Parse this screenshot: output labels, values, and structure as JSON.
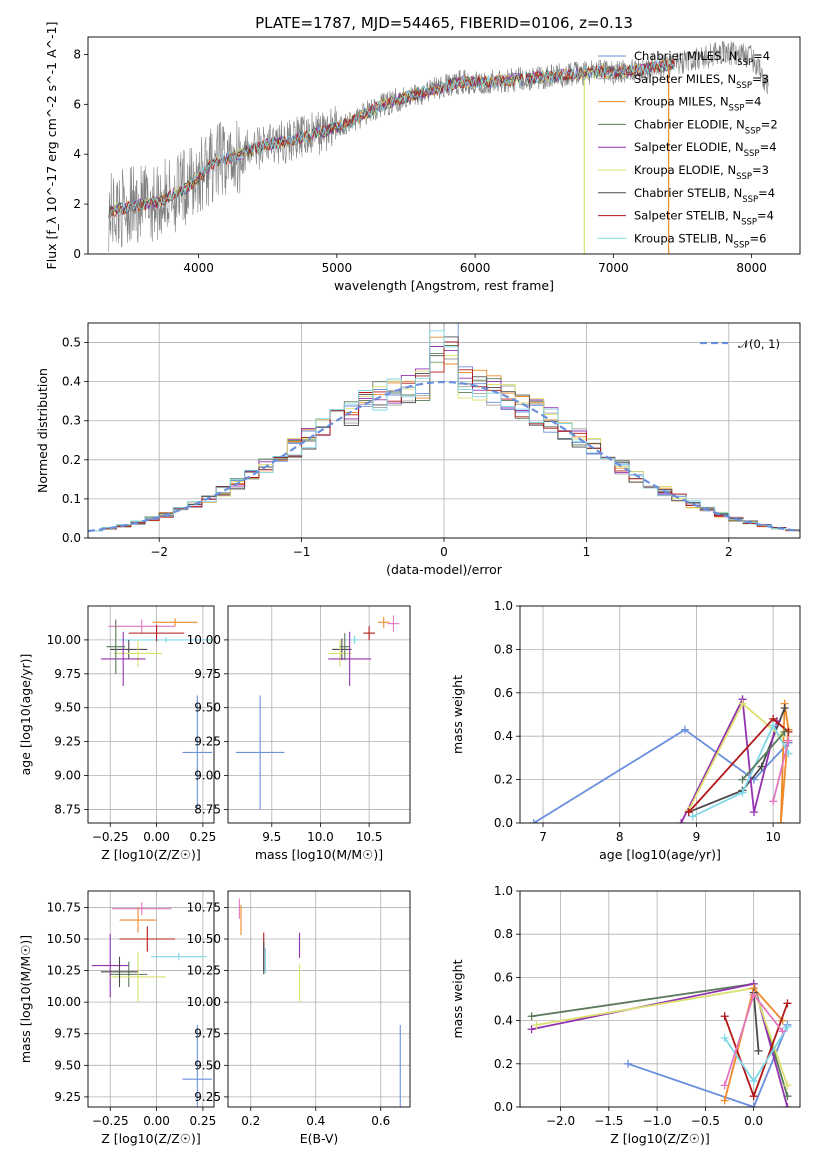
{
  "figure_title": "PLATE=1787, MJD=54465, FIBERID=0106, z=0.13",
  "colors": [
    "#6a8fdc",
    "#a0a0a0",
    "#ee8a2a",
    "#5a7a5a",
    "#9333b0",
    "#dce070",
    "#4a4a4a",
    "#b31818",
    "#7fd8e8"
  ],
  "chart_data": [
    {
      "type": "line",
      "title": "PLATE=1787, MJD=54465, FIBERID=0106, z=0.13",
      "xlabel": "wavelength [Angstrom, rest frame]",
      "ylabel": "Flux [f_λ 10^-17 erg cm^-2 s^-1 A^-1]",
      "xlim": [
        3200,
        8350
      ],
      "ylim": [
        0,
        8.7
      ],
      "xticks": [
        4000,
        5000,
        6000,
        7000,
        8000
      ],
      "yticks": [
        0,
        2,
        4,
        6,
        8
      ],
      "legend_position": "upper-right",
      "series": [
        {
          "name": "Chabrier MILES, N_SSP=4",
          "color": "#6a8fdc"
        },
        {
          "name": "Salpeter MILES, N_SSP=3",
          "color": "#a0a0a0"
        },
        {
          "name": "Kroupa MILES, N_SSP=4",
          "color": "#ee8a2a"
        },
        {
          "name": "Chabrier ELODIE, N_SSP=2",
          "color": "#5a7a5a"
        },
        {
          "name": "Salpeter ELODIE, N_SSP=4",
          "color": "#9333b0"
        },
        {
          "name": "Kroupa ELODIE, N_SSP=3",
          "color": "#dce070"
        },
        {
          "name": "Chabrier STELIB, N_SSP=4",
          "color": "#4a4a4a"
        },
        {
          "name": "Salpeter STELIB, N_SSP=4",
          "color": "#b31818"
        },
        {
          "name": "Kroupa STELIB, N_SSP=6",
          "color": "#7fd8e8"
        }
      ],
      "data_series": {
        "name": "data",
        "color": "#808080",
        "x": [
          3350,
          3500,
          3700,
          3900,
          4100,
          4300,
          4500,
          4700,
          4900,
          5100,
          5300,
          5500,
          5700,
          5900,
          6100,
          6300,
          6500,
          6700,
          6900,
          7100,
          7300,
          7450,
          7600,
          7800,
          8000,
          8100
        ],
        "y": [
          1.7,
          1.9,
          2.1,
          2.6,
          3.6,
          4.0,
          4.4,
          4.6,
          4.9,
          5.3,
          5.9,
          6.3,
          6.6,
          6.9,
          6.9,
          7.0,
          7.1,
          7.2,
          7.3,
          7.3,
          7.5,
          7.6,
          7.8,
          8.1,
          7.9,
          6.9
        ]
      }
    },
    {
      "type": "step",
      "xlabel": "(data-model)/error",
      "ylabel": "Normed distribution",
      "xlim": [
        -2.5,
        2.5
      ],
      "ylim": [
        0,
        0.55
      ],
      "xticks": [
        -2,
        -1,
        0,
        1,
        2
      ],
      "yticks": [
        0.0,
        0.1,
        0.2,
        0.3,
        0.4,
        0.5
      ],
      "grid": true,
      "legend_position": "upper-right",
      "reference_curve": {
        "name": "𝒩(0, 1)",
        "color": "#6a8fdc",
        "style": "dashed"
      },
      "bin_width": 0.1
    },
    {
      "type": "scatter",
      "xlabel": "Z [log10(Z/Z☉)]",
      "ylabel": "age  [log10(age/yr)]",
      "xlim": [
        -0.37,
        0.31
      ],
      "ylim": [
        8.65,
        10.25
      ],
      "xticks": [
        -0.25,
        0.0,
        0.25
      ],
      "xticklabels": [
        "−0.25",
        "0.00",
        "0.25"
      ],
      "yticks": [
        8.75,
        9.0,
        9.25,
        9.5,
        9.75,
        10.0
      ],
      "points": [
        {
          "x": 0.22,
          "y": 9.17,
          "xerr": 0.08,
          "yerr": 0.42,
          "color": "#6a8fdc"
        },
        {
          "x": 0.1,
          "y": 10.13,
          "xerr": 0.12,
          "yerr": 0.03,
          "color": "#ee8a2a"
        },
        {
          "x": 0.05,
          "y": 10.0,
          "xerr": 0.25,
          "yerr": 0.02,
          "color": "#7fd8e8"
        },
        {
          "x": -0.08,
          "y": 10.1,
          "xerr": 0.18,
          "yerr": 0.05,
          "color": "#e377c2"
        },
        {
          "x": 0.0,
          "y": 10.05,
          "xerr": 0.15,
          "yerr": 0.06,
          "color": "#b31818"
        },
        {
          "x": -0.15,
          "y": 9.93,
          "xerr": 0.1,
          "yerr": 0.07,
          "color": "#4a4a4a"
        },
        {
          "x": -0.1,
          "y": 9.9,
          "xerr": 0.13,
          "yerr": 0.1,
          "color": "#dce070"
        },
        {
          "x": -0.18,
          "y": 9.86,
          "xerr": 0.12,
          "yerr": 0.2,
          "color": "#9333b0"
        },
        {
          "x": -0.22,
          "y": 9.95,
          "xerr": 0.05,
          "yerr": 0.2,
          "color": "#5a7a5a"
        }
      ]
    },
    {
      "type": "scatter",
      "xlabel": "mass [log10(M/M☉)]",
      "ylabel": "",
      "xlim": [
        9.05,
        10.92
      ],
      "ylim": [
        8.65,
        10.25
      ],
      "xticks": [
        9.5,
        10.0,
        10.5
      ],
      "xticklabels": [
        "9.5",
        "10.0",
        "10.5"
      ],
      "yticks": [
        8.75,
        9.0,
        9.25,
        9.5,
        9.75,
        10.0
      ],
      "points": [
        {
          "x": 9.38,
          "y": 9.17,
          "xerr": 0.25,
          "yerr": 0.42,
          "color": "#6a8fdc"
        },
        {
          "x": 10.75,
          "y": 10.12,
          "xerr": 0.06,
          "yerr": 0.06,
          "color": "#e377c2"
        },
        {
          "x": 10.65,
          "y": 10.13,
          "xerr": 0.06,
          "yerr": 0.04,
          "color": "#ee8a2a"
        },
        {
          "x": 10.5,
          "y": 10.05,
          "xerr": 0.06,
          "yerr": 0.05,
          "color": "#b31818"
        },
        {
          "x": 10.35,
          "y": 10.0,
          "xerr": 0.05,
          "yerr": 0.03,
          "color": "#7fd8e8"
        },
        {
          "x": 10.22,
          "y": 9.93,
          "xerr": 0.1,
          "yerr": 0.08,
          "color": "#4a4a4a"
        },
        {
          "x": 10.2,
          "y": 9.9,
          "xerr": 0.12,
          "yerr": 0.1,
          "color": "#dce070"
        },
        {
          "x": 10.3,
          "y": 9.86,
          "xerr": 0.22,
          "yerr": 0.2,
          "color": "#9333b0"
        },
        {
          "x": 10.25,
          "y": 9.95,
          "xerr": 0.05,
          "yerr": 0.1,
          "color": "#5a7a5a"
        }
      ]
    },
    {
      "type": "line",
      "xlabel": "age  [log10(age/yr)]",
      "ylabel": "mass weight",
      "xlim": [
        6.7,
        10.35
      ],
      "ylim": [
        0,
        1.0
      ],
      "xticks": [
        7,
        8,
        9,
        10
      ],
      "yticks": [
        0.0,
        0.2,
        0.4,
        0.6,
        0.8,
        1.0
      ],
      "grid": true,
      "series": [
        {
          "color": "#6a8fdc",
          "x": [
            6.88,
            8.85,
            9.75,
            10.2
          ],
          "y": [
            0.0,
            0.43,
            0.2,
            0.37
          ]
        },
        {
          "color": "#ee8a2a",
          "x": [
            10.1,
            10.15,
            10.2,
            10.1
          ],
          "y": [
            0.0,
            0.55,
            0.43,
            0.0
          ]
        },
        {
          "color": "#4a4a4a",
          "x": [
            8.9,
            9.6,
            9.85,
            10.15
          ],
          "y": [
            0.05,
            0.15,
            0.26,
            0.53
          ]
        },
        {
          "color": "#9333b0",
          "x": [
            8.8,
            9.6,
            9.75,
            10.05
          ],
          "y": [
            0.0,
            0.57,
            0.05,
            0.47
          ]
        },
        {
          "color": "#dce070",
          "x": [
            8.9,
            9.6,
            10.1
          ],
          "y": [
            0.06,
            0.55,
            0.4
          ]
        },
        {
          "color": "#b31818",
          "x": [
            8.9,
            10.0,
            10.2
          ],
          "y": [
            0.05,
            0.48,
            0.42
          ]
        },
        {
          "color": "#7fd8e8",
          "x": [
            8.95,
            9.6,
            10.0,
            10.2
          ],
          "y": [
            0.03,
            0.14,
            0.45,
            0.32
          ]
        },
        {
          "color": "#e377c2",
          "x": [
            10.0,
            10.2
          ],
          "y": [
            0.1,
            0.38
          ]
        },
        {
          "color": "#5a7a5a",
          "x": [
            9.6,
            10.15
          ],
          "y": [
            0.2,
            0.42
          ]
        }
      ]
    },
    {
      "type": "scatter",
      "xlabel": "Z [log10(Z/Z☉)]",
      "ylabel": "mass [log10(M/M☉)]",
      "xlim": [
        -0.37,
        0.31
      ],
      "ylim": [
        9.17,
        10.88
      ],
      "xticks": [
        -0.25,
        0.0,
        0.25
      ],
      "xticklabels": [
        "−0.25",
        "0.00",
        "0.25"
      ],
      "yticks": [
        9.25,
        9.5,
        9.75,
        10.0,
        10.25,
        10.5,
        10.75
      ],
      "points": [
        {
          "x": 0.22,
          "y": 9.39,
          "xerr": 0.08,
          "yerr": 0.43,
          "color": "#6a8fdc"
        },
        {
          "x": -0.08,
          "y": 10.74,
          "xerr": 0.16,
          "yerr": 0.05,
          "color": "#e377c2"
        },
        {
          "x": -0.1,
          "y": 10.65,
          "xerr": 0.1,
          "yerr": 0.1,
          "color": "#ee8a2a"
        },
        {
          "x": -0.05,
          "y": 10.5,
          "xerr": 0.15,
          "yerr": 0.1,
          "color": "#b31818"
        },
        {
          "x": 0.12,
          "y": 10.36,
          "xerr": 0.15,
          "yerr": 0.03,
          "color": "#7fd8e8"
        },
        {
          "x": -0.25,
          "y": 10.29,
          "xerr": 0.1,
          "yerr": 0.25,
          "color": "#9333b0"
        },
        {
          "x": -0.15,
          "y": 10.22,
          "xerr": 0.1,
          "yerr": 0.1,
          "color": "#5a7a5a"
        },
        {
          "x": -0.1,
          "y": 10.2,
          "xerr": 0.15,
          "yerr": 0.2,
          "color": "#dce070"
        },
        {
          "x": -0.2,
          "y": 10.24,
          "xerr": 0.1,
          "yerr": 0.12,
          "color": "#4a4a4a"
        }
      ]
    },
    {
      "type": "scatter",
      "xlabel": "E(B-V)",
      "ylabel": "",
      "xlim": [
        0.13,
        0.69
      ],
      "ylim": [
        9.17,
        10.88
      ],
      "xticks": [
        0.2,
        0.4,
        0.6
      ],
      "xticklabels": [
        "0.2",
        "0.4",
        "0.6"
      ],
      "yticks": [
        9.25,
        9.5,
        9.75,
        10.0,
        10.25,
        10.5,
        10.75
      ],
      "points": [
        {
          "x": 0.66,
          "y": 9.39,
          "xerr": 0.0,
          "yerr": 0.43,
          "color": "#6a8fdc"
        },
        {
          "x": 0.165,
          "y": 10.74,
          "xerr": 0.0,
          "yerr": 0.08,
          "color": "#e377c2"
        },
        {
          "x": 0.17,
          "y": 10.65,
          "xerr": 0.0,
          "yerr": 0.12,
          "color": "#ee8a2a"
        },
        {
          "x": 0.24,
          "y": 10.4,
          "xerr": 0.0,
          "yerr": 0.15,
          "color": "#b31818"
        },
        {
          "x": 0.24,
          "y": 10.35,
          "xerr": 0.0,
          "yerr": 0.13,
          "color": "#4a4a4a"
        },
        {
          "x": 0.245,
          "y": 10.33,
          "xerr": 0.0,
          "yerr": 0.1,
          "color": "#7fd8e8"
        },
        {
          "x": 0.35,
          "y": 10.45,
          "xerr": 0.0,
          "yerr": 0.1,
          "color": "#9333b0"
        },
        {
          "x": 0.35,
          "y": 10.15,
          "xerr": 0.0,
          "yerr": 0.15,
          "color": "#dce070"
        }
      ]
    },
    {
      "type": "line",
      "xlabel": "Z [log10(Z/Z☉)]",
      "ylabel": "mass weight",
      "xlim": [
        -2.42,
        0.48
      ],
      "ylim": [
        0,
        1.0
      ],
      "xticks": [
        -2.0,
        -1.5,
        -1.0,
        -0.5,
        0.0
      ],
      "xticklabels": [
        "−2.0",
        "−1.5",
        "−1.0",
        "−0.5",
        "0.0"
      ],
      "yticks": [
        0.0,
        0.2,
        0.4,
        0.6,
        0.8,
        1.0
      ],
      "grid": true,
      "series": [
        {
          "color": "#6a8fdc",
          "x": [
            -1.3,
            0.0,
            0.35
          ],
          "y": [
            0.2,
            0.0,
            0.38
          ]
        },
        {
          "color": "#5a7a5a",
          "x": [
            -2.3,
            0.0,
            0.35
          ],
          "y": [
            0.42,
            0.57,
            0.05
          ]
        },
        {
          "color": "#9333b0",
          "x": [
            -2.3,
            0.0,
            0.35
          ],
          "y": [
            0.36,
            0.57,
            0.0
          ]
        },
        {
          "color": "#dce070",
          "x": [
            -2.25,
            0.0,
            0.35
          ],
          "y": [
            0.38,
            0.55,
            0.1
          ]
        },
        {
          "color": "#ee8a2a",
          "x": [
            -0.3,
            0.0,
            0.3
          ],
          "y": [
            0.03,
            0.55,
            0.4
          ]
        },
        {
          "color": "#b31818",
          "x": [
            -0.3,
            0.0,
            0.35
          ],
          "y": [
            0.42,
            0.05,
            0.48
          ]
        },
        {
          "color": "#4a4a4a",
          "x": [
            0.0,
            0.05
          ],
          "y": [
            0.53,
            0.26
          ]
        },
        {
          "color": "#7fd8e8",
          "x": [
            -0.3,
            0.0,
            0.35
          ],
          "y": [
            0.32,
            0.12,
            0.37
          ]
        },
        {
          "color": "#e377c2",
          "x": [
            -0.3,
            0.0,
            0.3
          ],
          "y": [
            0.1,
            0.52,
            0.35
          ]
        }
      ]
    }
  ]
}
